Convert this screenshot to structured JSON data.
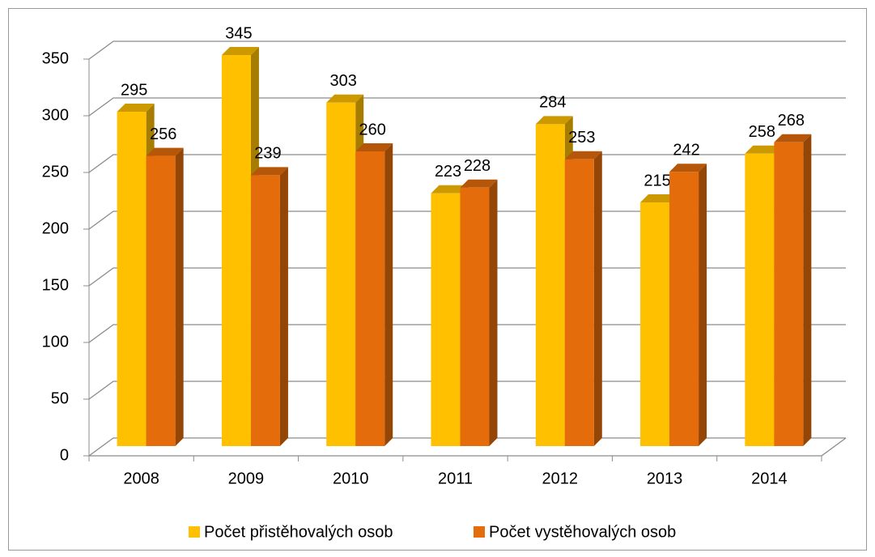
{
  "chart_data": {
    "type": "bar3d",
    "categories": [
      "2008",
      "2009",
      "2010",
      "2011",
      "2012",
      "2013",
      "2014"
    ],
    "series": [
      {
        "name": "Počet přistěhovalých osob",
        "color": "#ffc000",
        "values": [
          295,
          345,
          303,
          223,
          284,
          215,
          258
        ]
      },
      {
        "name": "Počet vystěhovalých osob",
        "color": "#e46c0a",
        "values": [
          256,
          239,
          260,
          228,
          253,
          242,
          268
        ]
      }
    ],
    "ylim": [
      0,
      350
    ],
    "yticks": [
      0,
      50,
      100,
      150,
      200,
      250,
      300,
      350
    ],
    "grid": true,
    "legend": "bottom"
  }
}
